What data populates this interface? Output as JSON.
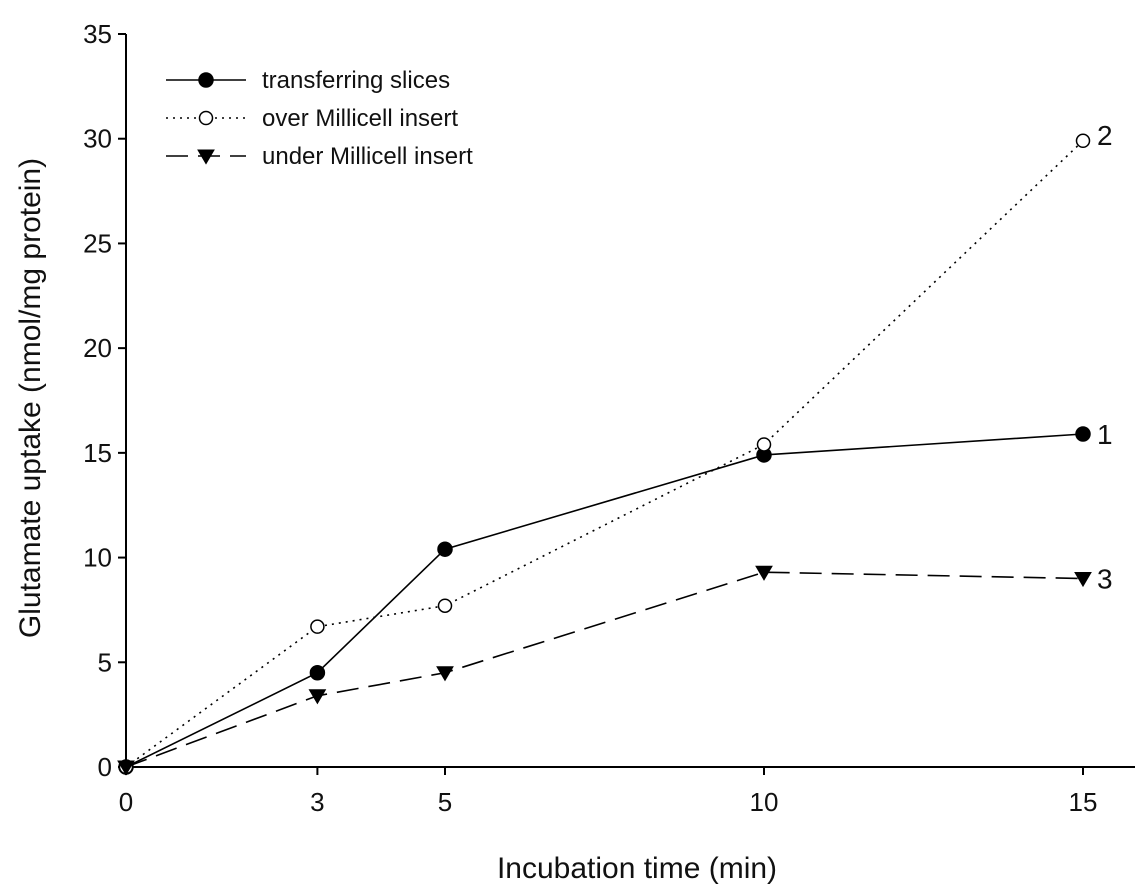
{
  "chart_data": {
    "type": "line",
    "title": "",
    "xlabel": "Incubation time (min)",
    "ylabel": "Glutamate uptake (nmol/mg protein)",
    "xlim": [
      0,
      16
    ],
    "ylim": [
      0,
      35
    ],
    "xticks": [
      0,
      3,
      5,
      10,
      15
    ],
    "yticks": [
      0,
      5,
      10,
      15,
      20,
      25,
      30,
      35
    ],
    "grid": false,
    "legend_position": "top-left",
    "x": [
      0,
      3,
      5,
      10,
      15
    ],
    "series": [
      {
        "name": "transferring slices",
        "values": [
          0,
          4.5,
          10.4,
          14.9,
          15.9
        ],
        "end_label": "1",
        "line_style": "solid",
        "marker": "filled-circle",
        "color": "#000000"
      },
      {
        "name": "over Millicell insert",
        "values": [
          0,
          6.7,
          7.7,
          15.4,
          29.9
        ],
        "end_label": "2",
        "line_style": "dotted",
        "marker": "open-circle",
        "color": "#000000"
      },
      {
        "name": "under Millicell insert",
        "values": [
          0,
          3.4,
          4.5,
          9.3,
          9.0
        ],
        "end_label": "3",
        "line_style": "dashed",
        "marker": "filled-triangle-down",
        "color": "#000000"
      }
    ]
  }
}
